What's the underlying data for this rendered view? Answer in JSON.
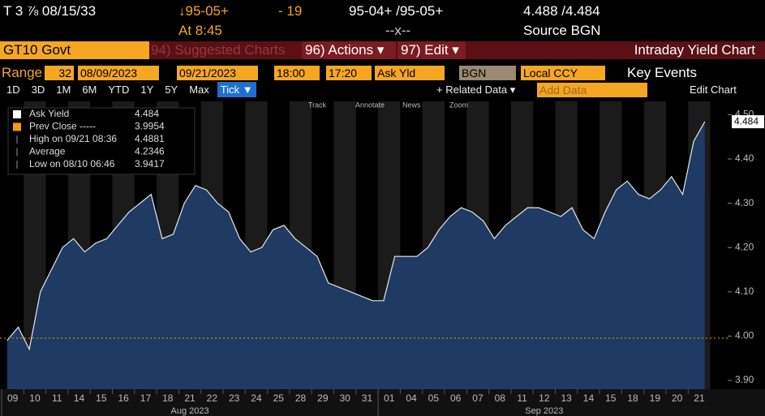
{
  "header": {
    "security": "T 3 ⅞ 08/15/33",
    "change_price": "↓95-05+",
    "change": "- 19",
    "bid_ask_price": "95-04+ /95-05+",
    "bid_ask_yield": "4.488 /4.484",
    "time": "At 8:45",
    "volume": "--x--",
    "source": "Source BGN"
  },
  "toolbar": {
    "ticker": "GT10 Govt",
    "suggested": "94) Suggested Charts",
    "actions": "96) Actions ▾",
    "edit": "97) Edit ▾",
    "title": "Intraday Yield Chart"
  },
  "range_bar": {
    "label": "Range",
    "count": "32",
    "start": "08/09/2023",
    "end": "09/21/2023",
    "start_time": "18:00",
    "end_time": "17:20",
    "field": "Ask Yld",
    "source": "BGN",
    "currency": "Local CCY",
    "events": "Key Events"
  },
  "period_bar": {
    "buttons": [
      "1D",
      "3D",
      "1M",
      "6M",
      "YTD",
      "1Y",
      "5Y",
      "Max",
      "Tick ▼"
    ],
    "related": "+ Related Data ▾",
    "add": "Add Data",
    "edit_chart": "Edit Chart"
  },
  "chart_tools": [
    "Track",
    "Annotate",
    "News",
    "Zoom"
  ],
  "chart_data": {
    "type": "area",
    "color": "#1f3a63",
    "line_color": "#e8e8e8",
    "legend": [
      {
        "label": "Ask Yield",
        "value": 4.484,
        "color": "#ffffff"
      },
      {
        "label": "Prev Close -----",
        "value": 3.9954,
        "color": "#f39c12"
      },
      {
        "label": "High on 09/21 08:36",
        "value": 4.4881
      },
      {
        "label": "Average",
        "value": 4.2346
      },
      {
        "label": "Low on 08/10 06:46",
        "value": 3.9417
      }
    ],
    "categories": [
      "09",
      null,
      "10",
      null,
      "11",
      null,
      "14",
      null,
      "15",
      null,
      "16",
      null,
      "17",
      null,
      "18",
      null,
      "21",
      null,
      "22",
      null,
      "23",
      null,
      "24",
      null,
      "25",
      null,
      "28",
      null,
      "29",
      null,
      "30",
      null,
      "31",
      null,
      "01",
      null,
      "04",
      null,
      "05",
      null,
      "06",
      null,
      "07",
      null,
      "08",
      null,
      "11",
      null,
      "12",
      null,
      "13",
      null,
      "14",
      null,
      "15",
      null,
      "18",
      null,
      "19",
      null,
      "20",
      null,
      "21",
      null
    ],
    "values": [
      3.99,
      4.02,
      3.97,
      4.1,
      4.15,
      4.2,
      4.22,
      4.19,
      4.21,
      4.22,
      4.25,
      4.28,
      4.3,
      4.32,
      4.22,
      4.23,
      4.3,
      4.34,
      4.33,
      4.3,
      4.28,
      4.22,
      4.19,
      4.2,
      4.24,
      4.25,
      4.22,
      4.2,
      4.18,
      4.12,
      4.11,
      4.1,
      4.09,
      4.08,
      4.08,
      4.18,
      4.18,
      4.18,
      4.2,
      4.24,
      4.27,
      4.29,
      4.28,
      4.26,
      4.22,
      4.25,
      4.27,
      4.29,
      4.29,
      4.28,
      4.27,
      4.29,
      4.24,
      4.22,
      4.28,
      4.33,
      4.35,
      4.32,
      4.31,
      4.33,
      4.36,
      4.32,
      4.44,
      4.484
    ],
    "month_labels": [
      "Aug 2023",
      "Sep 2023"
    ],
    "month_start": [
      0,
      34
    ],
    "ylim": [
      3.88,
      4.53
    ],
    "yticks": [
      {
        "value": 3.9,
        "label": "3.90"
      },
      {
        "value": 4.0,
        "label": "4.00"
      },
      {
        "value": 4.1,
        "label": "4.10"
      },
      {
        "value": 4.2,
        "label": "4.20"
      },
      {
        "value": 4.3,
        "label": "4.30"
      },
      {
        "value": 4.4,
        "label": "4.40"
      },
      {
        "value": 4.5,
        "label": "4.50"
      }
    ]
  }
}
